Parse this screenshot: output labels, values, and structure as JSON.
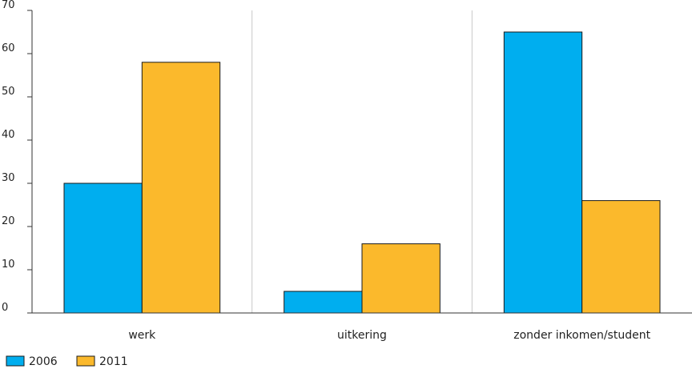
{
  "chart_data": {
    "type": "bar",
    "categories": [
      "werk",
      "uitkering",
      "zonder inkomen/student"
    ],
    "series": [
      {
        "name": "2006",
        "values": [
          30,
          5,
          65
        ],
        "color": "#00aeef"
      },
      {
        "name": "2011",
        "values": [
          58,
          16,
          26
        ],
        "color": "#fbb92c"
      }
    ],
    "yticks": [
      0,
      10,
      20,
      30,
      40,
      50,
      60,
      70
    ],
    "ylim": [
      0,
      70
    ],
    "grid": "vertical separators between categories",
    "legend_position": "bottom-left",
    "colors": {
      "outline": "#1a1a1a",
      "grid": "#c8c8c8",
      "axis": "#333333"
    }
  }
}
